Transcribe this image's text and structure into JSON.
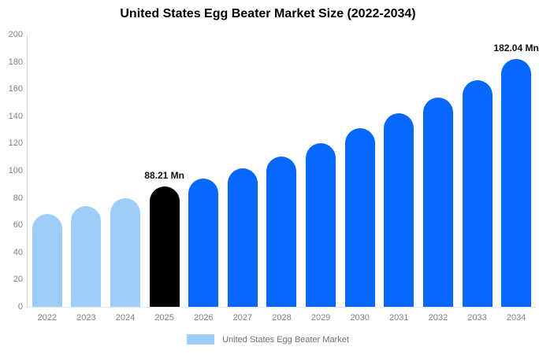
{
  "title": "United States Egg Beater Market Size (2022-2034)",
  "chart_data": {
    "type": "bar",
    "title": "United States Egg Beater Market Size (2022-2034)",
    "categories": [
      "2022",
      "2023",
      "2024",
      "2025",
      "2026",
      "2027",
      "2028",
      "2029",
      "2030",
      "2031",
      "2032",
      "2033",
      "2034"
    ],
    "values": [
      68,
      74,
      80,
      88.21,
      94,
      102,
      110.5,
      120,
      131,
      142,
      153.5,
      166.5,
      182.04
    ],
    "bar_colors": [
      "#9fcdfa",
      "#9fcdfa",
      "#9fcdfa",
      "#000000",
      "#0667fc",
      "#0667fc",
      "#0667fc",
      "#0667fc",
      "#0667fc",
      "#0667fc",
      "#0667fc",
      "#0667fc",
      "#0667fc"
    ],
    "xlabel": "",
    "ylabel": "",
    "ylim": [
      0,
      200
    ],
    "yticks": [
      0,
      20,
      40,
      60,
      80,
      100,
      120,
      140,
      160,
      180,
      200
    ],
    "grid": false,
    "legend": {
      "position": "bottom",
      "entries": [
        {
          "label": "United States Egg Beater Market",
          "color": "#9fcdfa"
        }
      ]
    },
    "annotations": [
      {
        "index": 3,
        "text": "88.21 Mn"
      },
      {
        "index": 12,
        "text": "182.04 Mn"
      }
    ]
  },
  "colors": {
    "light_blue": "#9fcdfa",
    "blue": "#0667fc",
    "black": "#000000",
    "axis_line": "#d4d4d4",
    "baseline": "#e7e7e7",
    "tick_text": "#808080",
    "legend_text": "#707070"
  }
}
